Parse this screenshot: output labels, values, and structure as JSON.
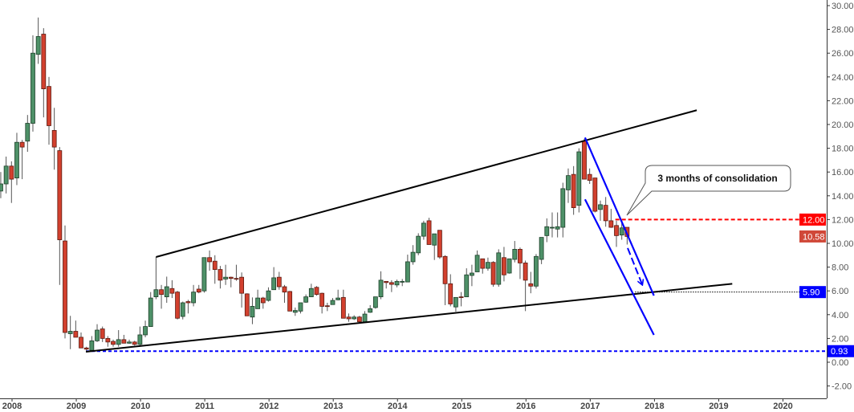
{
  "chart_data": {
    "type": "candlestick",
    "title": "",
    "xlabel": "",
    "ylabel": "",
    "frequency": "monthly",
    "ylim": [
      -3.0,
      30.5
    ],
    "xlim": [
      "2007-11",
      "2021-03"
    ],
    "grid": false,
    "y_ticks": [
      "-2.00",
      "0.00",
      "2.00",
      "4.00",
      "6.00",
      "8.00",
      "10.00",
      "12.00",
      "14.00",
      "16.00",
      "18.00",
      "20.00",
      "22.00",
      "24.00",
      "26.00",
      "28.00",
      "30.00"
    ],
    "x_ticks": [
      "2008",
      "2009",
      "2010",
      "2011",
      "2012",
      "2013",
      "2014",
      "2015",
      "2016",
      "2017",
      "2018",
      "2019",
      "2020"
    ],
    "colors": {
      "up_fill": "#4e9168",
      "up_edge": "#1d3f29",
      "down_fill": "#d2402e",
      "down_edge": "#5c1a10",
      "wick": "#555555",
      "trend": "#000000",
      "channel": "#0000ff",
      "resistance": "#ff0000"
    },
    "candles_columns": [
      "date",
      "open",
      "high",
      "low",
      "close"
    ],
    "candles": [
      [
        "2007-11",
        14.4,
        16.0,
        13.8,
        15.0
      ],
      [
        "2007-12",
        15.0,
        17.3,
        14.2,
        16.5
      ],
      [
        "2008-01",
        16.5,
        16.9,
        13.4,
        15.4
      ],
      [
        "2008-02",
        15.5,
        19.3,
        14.9,
        18.5
      ],
      [
        "2008-03",
        18.5,
        18.7,
        15.4,
        18.1
      ],
      [
        "2008-04",
        18.6,
        20.8,
        17.7,
        20.1
      ],
      [
        "2008-05",
        20.1,
        27.5,
        19.4,
        26.0
      ],
      [
        "2008-06",
        25.9,
        29.0,
        25.1,
        27.4
      ],
      [
        "2008-07",
        27.6,
        28.1,
        20.6,
        23.0
      ],
      [
        "2008-08",
        23.2,
        24.0,
        18.3,
        19.9
      ],
      [
        "2008-09",
        19.5,
        21.4,
        16.2,
        18.1
      ],
      [
        "2008-10",
        17.8,
        18.1,
        6.5,
        10.3
      ],
      [
        "2008-11",
        10.2,
        11.5,
        2.0,
        2.5
      ],
      [
        "2008-12",
        2.4,
        3.9,
        1.1,
        2.6
      ],
      [
        "2009-01",
        2.6,
        3.5,
        2.1,
        2.1
      ],
      [
        "2009-02",
        2.1,
        2.5,
        1.2,
        1.2
      ],
      [
        "2009-03",
        1.2,
        1.3,
        0.93,
        1.1
      ],
      [
        "2009-04",
        1.0,
        2.2,
        0.93,
        1.8
      ],
      [
        "2009-05",
        1.8,
        3.2,
        1.7,
        2.7
      ],
      [
        "2009-06",
        2.8,
        3.0,
        1.7,
        2.0
      ],
      [
        "2009-07",
        2.0,
        2.2,
        1.3,
        1.7
      ],
      [
        "2009-08",
        1.75,
        1.9,
        1.3,
        1.5
      ],
      [
        "2009-09",
        1.5,
        2.7,
        1.3,
        1.9
      ],
      [
        "2009-10",
        1.9,
        2.3,
        1.6,
        1.6
      ],
      [
        "2009-11",
        1.6,
        1.9,
        1.55,
        1.7
      ],
      [
        "2009-12",
        1.7,
        1.8,
        1.4,
        1.5
      ],
      [
        "2010-01",
        1.5,
        3.0,
        1.3,
        2.3
      ],
      [
        "2010-02",
        2.3,
        3.5,
        2.1,
        3.0
      ],
      [
        "2010-03",
        3.0,
        5.9,
        3.0,
        5.4
      ],
      [
        "2010-04",
        5.5,
        8.85,
        5.3,
        6.1
      ],
      [
        "2010-05",
        6.1,
        6.5,
        4.5,
        5.7
      ],
      [
        "2010-06",
        5.5,
        7.2,
        5.0,
        6.35
      ],
      [
        "2010-07",
        6.2,
        6.9,
        5.4,
        5.8
      ],
      [
        "2010-08",
        5.9,
        6.0,
        3.6,
        3.7
      ],
      [
        "2010-09",
        3.85,
        5.1,
        3.6,
        5.0
      ],
      [
        "2010-10",
        5.1,
        5.25,
        4.1,
        5.0
      ],
      [
        "2010-11",
        5.0,
        6.5,
        4.7,
        5.9
      ],
      [
        "2010-12",
        6.15,
        6.5,
        5.8,
        5.9
      ],
      [
        "2011-01",
        6.0,
        8.8,
        5.85,
        8.8
      ],
      [
        "2011-02",
        8.8,
        9.4,
        7.7,
        8.45
      ],
      [
        "2011-03",
        8.5,
        9.0,
        6.6,
        7.8
      ],
      [
        "2011-04",
        7.8,
        8.1,
        6.2,
        6.9
      ],
      [
        "2011-05",
        7.0,
        8.2,
        6.5,
        7.15
      ],
      [
        "2011-06",
        7.15,
        7.2,
        6.3,
        7.05
      ],
      [
        "2011-07",
        7.05,
        8.2,
        6.85,
        7.0
      ],
      [
        "2011-08",
        7.15,
        7.55,
        4.6,
        5.8
      ],
      [
        "2011-09",
        5.75,
        5.8,
        3.9,
        3.9
      ],
      [
        "2011-10",
        3.8,
        5.45,
        3.2,
        4.7
      ],
      [
        "2011-11",
        4.5,
        6.1,
        4.5,
        5.4
      ],
      [
        "2011-12",
        5.4,
        5.5,
        4.5,
        5.0
      ],
      [
        "2012-01",
        5.2,
        6.3,
        5.1,
        6.0
      ],
      [
        "2012-02",
        6.1,
        8.0,
        6.1,
        7.1
      ],
      [
        "2012-03",
        7.15,
        7.6,
        6.1,
        6.35
      ],
      [
        "2012-04",
        6.35,
        6.5,
        5.0,
        5.9
      ],
      [
        "2012-05",
        5.95,
        6.0,
        4.3,
        4.3
      ],
      [
        "2012-06",
        4.2,
        4.6,
        3.9,
        4.35
      ],
      [
        "2012-07",
        4.3,
        5.0,
        4.1,
        5.0
      ],
      [
        "2012-08",
        5.05,
        5.7,
        5.0,
        5.5
      ],
      [
        "2012-09",
        5.5,
        6.6,
        5.5,
        6.2
      ],
      [
        "2012-10",
        6.3,
        6.4,
        5.6,
        5.7
      ],
      [
        "2012-11",
        5.8,
        5.85,
        4.1,
        4.7
      ],
      [
        "2012-12",
        4.75,
        5.0,
        4.3,
        4.7
      ],
      [
        "2013-01",
        4.85,
        5.4,
        4.85,
        5.2
      ],
      [
        "2013-02",
        5.25,
        6.1,
        5.2,
        5.4
      ],
      [
        "2013-03",
        5.45,
        6.1,
        3.7,
        3.7
      ],
      [
        "2013-04",
        3.8,
        4.1,
        3.4,
        3.65
      ],
      [
        "2013-05",
        3.65,
        3.95,
        3.55,
        3.8
      ],
      [
        "2013-06",
        3.8,
        3.9,
        3.35,
        3.4
      ],
      [
        "2013-07",
        3.4,
        4.3,
        3.35,
        4.05
      ],
      [
        "2013-08",
        4.2,
        4.8,
        4.15,
        4.5
      ],
      [
        "2013-09",
        4.6,
        5.5,
        4.5,
        5.5
      ],
      [
        "2013-10",
        5.5,
        7.65,
        5.3,
        6.9
      ],
      [
        "2013-11",
        6.8,
        6.8,
        6.2,
        6.7
      ],
      [
        "2013-12",
        6.7,
        6.9,
        5.9,
        6.55
      ],
      [
        "2014-01",
        6.5,
        6.95,
        6.3,
        6.8
      ],
      [
        "2014-02",
        6.75,
        7.0,
        6.4,
        6.8
      ],
      [
        "2014-03",
        6.75,
        9.05,
        6.75,
        8.45
      ],
      [
        "2014-04",
        8.45,
        9.85,
        8.2,
        9.25
      ],
      [
        "2014-05",
        9.2,
        10.85,
        9.0,
        10.6
      ],
      [
        "2014-06",
        10.6,
        11.9,
        10.3,
        11.7
      ],
      [
        "2014-07",
        11.9,
        12.15,
        9.9,
        9.9
      ],
      [
        "2014-08",
        9.85,
        10.8,
        8.6,
        10.8
      ],
      [
        "2014-09",
        11.1,
        11.1,
        8.7,
        8.85
      ],
      [
        "2014-10",
        8.9,
        9.0,
        4.8,
        6.6
      ],
      [
        "2014-11",
        6.6,
        7.4,
        4.7,
        4.9
      ],
      [
        "2014-12",
        4.65,
        5.45,
        4.25,
        5.45
      ],
      [
        "2015-01",
        5.5,
        5.9,
        4.7,
        5.45
      ],
      [
        "2015-02",
        5.5,
        7.9,
        5.5,
        7.35
      ],
      [
        "2015-03",
        7.3,
        8.2,
        6.4,
        7.5
      ],
      [
        "2015-04",
        7.6,
        9.4,
        7.6,
        9.0
      ],
      [
        "2015-05",
        8.7,
        8.7,
        7.45,
        7.9
      ],
      [
        "2015-06",
        7.9,
        8.8,
        7.7,
        8.4
      ],
      [
        "2015-07",
        8.4,
        8.5,
        6.35,
        6.55
      ],
      [
        "2015-08",
        6.55,
        9.5,
        6.35,
        9.2
      ],
      [
        "2015-09",
        8.8,
        9.7,
        6.8,
        7.35
      ],
      [
        "2015-10",
        7.5,
        8.7,
        7.45,
        8.7
      ],
      [
        "2015-11",
        8.65,
        10.2,
        8.4,
        9.5
      ],
      [
        "2015-12",
        9.5,
        9.65,
        7.0,
        8.35
      ],
      [
        "2016-01",
        8.35,
        8.55,
        4.3,
        6.9
      ],
      [
        "2016-02",
        6.6,
        7.6,
        5.8,
        6.4
      ],
      [
        "2016-03",
        6.4,
        9.1,
        6.2,
        8.9
      ],
      [
        "2016-04",
        8.65,
        10.5,
        8.25,
        10.5
      ],
      [
        "2016-05",
        10.65,
        12.1,
        10.1,
        11.4
      ],
      [
        "2016-06",
        11.3,
        12.6,
        10.5,
        11.35
      ],
      [
        "2016-07",
        11.2,
        12.6,
        10.5,
        11.4
      ],
      [
        "2016-08",
        11.35,
        15.1,
        10.5,
        14.6
      ],
      [
        "2016-09",
        14.5,
        16.3,
        13.4,
        15.7
      ],
      [
        "2016-10",
        15.8,
        16.5,
        12.4,
        13.0
      ],
      [
        "2016-11",
        13.2,
        18.0,
        12.6,
        17.7
      ],
      [
        "2016-12",
        18.6,
        18.8,
        15.4,
        15.4
      ],
      [
        "2017-01",
        15.8,
        16.3,
        15.0,
        15.3
      ],
      [
        "2017-02",
        15.5,
        15.5,
        12.6,
        12.7
      ],
      [
        "2017-03",
        12.85,
        13.6,
        11.9,
        13.25
      ],
      [
        "2017-04",
        13.2,
        13.9,
        11.4,
        11.9
      ],
      [
        "2017-05",
        11.9,
        12.9,
        11.3,
        11.35
      ],
      [
        "2017-06",
        11.5,
        11.9,
        9.7,
        10.65
      ],
      [
        "2017-07",
        10.7,
        11.8,
        10.3,
        11.3
      ],
      [
        "2017-08",
        11.35,
        11.35,
        9.9,
        10.58
      ]
    ],
    "trendlines": [
      {
        "kind": "upper-trend",
        "color": "#000000",
        "from": [
          "2010-04",
          8.85
        ],
        "to": [
          "2018-09",
          21.2
        ]
      },
      {
        "kind": "lower-trend",
        "color": "#000000",
        "from": [
          "2009-02-28",
          0.88
        ],
        "to": [
          "2019-03-20",
          6.6
        ]
      },
      {
        "kind": "channel-upper",
        "color": "#0000ff",
        "from": [
          "2016-12-05",
          18.9
        ],
        "to": [
          "2018-01",
          5.6
        ]
      },
      {
        "kind": "channel-lower",
        "color": "#0000ff",
        "from": [
          "2016-12-05",
          13.7
        ],
        "to": [
          "2018-01",
          2.3
        ]
      },
      {
        "kind": "arrow",
        "color": "#0000ff",
        "from": [
          "2017-08-04",
          9.6
        ],
        "to": [
          "2017-10-25",
          6.55
        ]
      }
    ],
    "levels": [
      {
        "value": 12.0,
        "label": "12.00",
        "color": "#ff0000",
        "style": "dashed",
        "from": "2017-05-25",
        "badge": "#ff0000"
      },
      {
        "value": 10.58,
        "label": "10.58",
        "color": "#d04838",
        "style": "none",
        "badge": "#d04838"
      },
      {
        "value": 5.9,
        "label": "5.90",
        "color": "#000000",
        "style": "dotted",
        "from": "2017-09-15",
        "badge": "#0000ff"
      },
      {
        "value": 0.93,
        "label": "0.93",
        "color": "#0000ff",
        "style": "dashed",
        "from": "2009-02-28",
        "badge": "#0000ff"
      }
    ],
    "annotations": [
      {
        "text": "3 months of consolidation",
        "points_to": [
          "2017-06-20",
          12.3
        ]
      }
    ]
  }
}
